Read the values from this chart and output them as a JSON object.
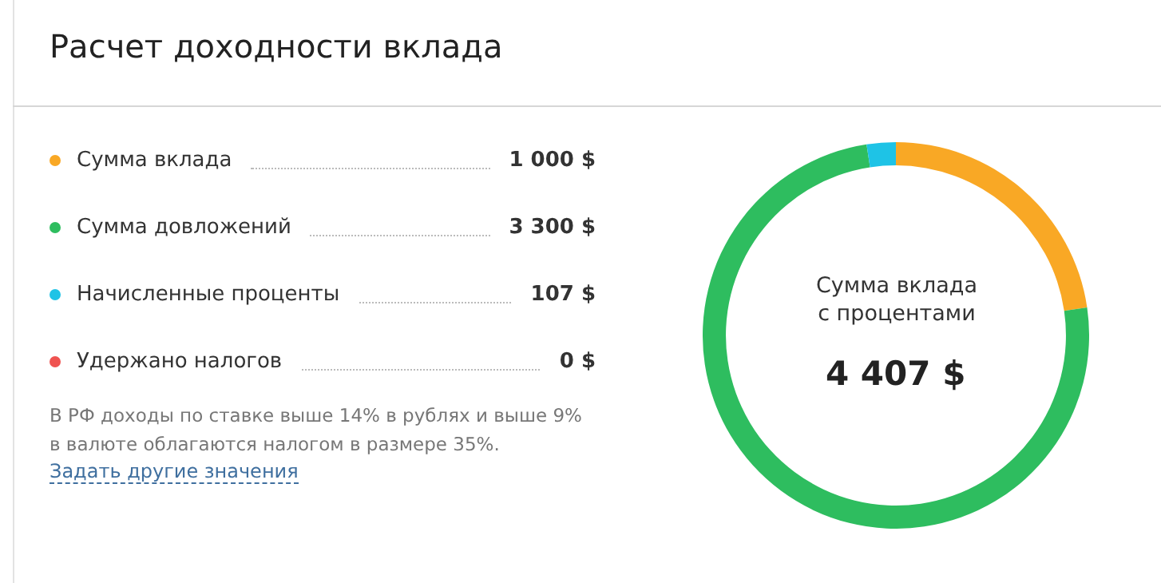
{
  "chart_data": {
    "type": "donut",
    "title": "Расчет доходности вклада",
    "categories": [
      "Сумма вклада",
      "Сумма довложений",
      "Начисленные проценты",
      "Удержано налогов"
    ],
    "values": [
      1000,
      3300,
      107,
      0
    ],
    "colors": [
      "#f9a825",
      "#2ebd5f",
      "#1ec3e6",
      "#ef5350"
    ],
    "value_labels": [
      "1 000 $",
      "3 300 $",
      "107 $",
      "0 $"
    ],
    "legend": "left",
    "annotations": [
      "В РФ доходы по ставке выше 14% в рублях и выше 9%\nв валюте облагаются налогом в размере 35%.",
      "Задать другие значения",
      "Сумма вклада\nс процентами",
      "4 407 $"
    ]
  }
}
